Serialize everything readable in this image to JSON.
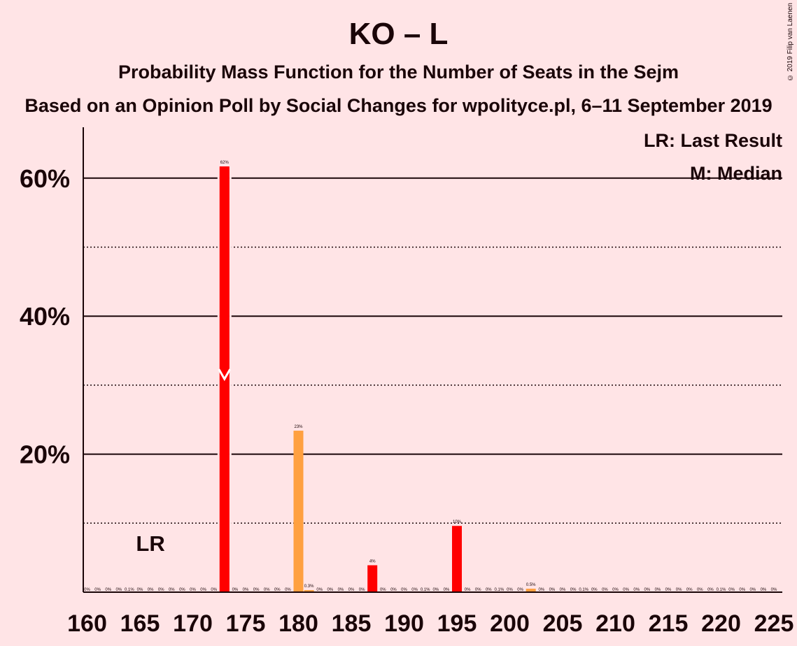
{
  "title": "KO – L",
  "subtitle": "Probability Mass Function for the Number of Seats in the Sejm",
  "source": "Based on an Opinion Poll by Social Changes for wpolityce.pl, 6–11 September 2019",
  "copyright": "© 2019 Filip van Laenen",
  "legend": {
    "lr": "LR: Last Result",
    "m": "M: Median"
  },
  "lr_marker": "LR",
  "colors": {
    "background": "#FFE4E6",
    "red": "#FF0000",
    "orange": "#FFA040",
    "text": "#1a0508"
  },
  "chart_data": {
    "type": "bar",
    "x": [
      160,
      161,
      162,
      163,
      164,
      165,
      166,
      167,
      168,
      169,
      170,
      171,
      172,
      173,
      174,
      175,
      176,
      177,
      178,
      179,
      180,
      181,
      182,
      183,
      184,
      185,
      186,
      187,
      188,
      189,
      190,
      191,
      192,
      193,
      194,
      195,
      196,
      197,
      198,
      199,
      200,
      201,
      202,
      203,
      204,
      205,
      206,
      207,
      208,
      209,
      210,
      211,
      212,
      213,
      214,
      215,
      216,
      217,
      218,
      219,
      220,
      221,
      222,
      223,
      224,
      225
    ],
    "values": [
      0,
      0,
      0,
      0,
      0.1,
      0,
      0,
      0,
      0,
      0,
      0,
      0,
      0,
      61.7,
      0,
      0,
      0,
      0,
      0,
      0,
      23.4,
      0.3,
      0,
      0,
      0,
      0,
      0,
      3.9,
      0,
      0,
      0,
      0,
      0.1,
      0,
      0,
      9.6,
      0,
      0,
      0,
      0.1,
      0,
      0,
      0.5,
      0,
      0,
      0,
      0,
      0.1,
      0,
      0,
      0,
      0,
      0,
      0,
      0,
      0,
      0,
      0,
      0,
      0,
      0.1,
      0,
      0,
      0,
      0,
      0
    ],
    "labels": [
      "0%",
      "0%",
      "0%",
      "0%",
      "0.1%",
      "0%",
      "0%",
      "0%",
      "0%",
      "0%",
      "0%",
      "0%",
      "0%",
      "62%",
      "0%",
      "0%",
      "0%",
      "0%",
      "0%",
      "0%",
      "23%",
      "0.3%",
      "0%",
      "0%",
      "0%",
      "0%",
      "0%",
      "4%",
      "0%",
      "0%",
      "0%",
      "0%",
      "0.1%",
      "0%",
      "0%",
      "10%",
      "0%",
      "0%",
      "0%",
      "0.1%",
      "0%",
      "0%",
      "0.5%",
      "0%",
      "0%",
      "0%",
      "0%",
      "0.1%",
      "0%",
      "0%",
      "0%",
      "0%",
      "0%",
      "0%",
      "0%",
      "0%",
      "0%",
      "0%",
      "0%",
      "0%",
      "0.1%",
      "0%",
      "0%",
      "0%",
      "0%",
      "0%"
    ],
    "orange_x": [
      180,
      181,
      202
    ],
    "median": 173,
    "last_result": 166,
    "xticks": [
      160,
      165,
      170,
      175,
      180,
      185,
      190,
      195,
      200,
      205,
      210,
      215,
      220,
      225
    ],
    "yticks": [
      {
        "v": 20,
        "label": "20%"
      },
      {
        "v": 40,
        "label": "40%"
      },
      {
        "v": 60,
        "label": "60%"
      }
    ],
    "ygrid_minor": [
      10,
      30,
      50
    ],
    "ylim": [
      0,
      67
    ],
    "xlim": [
      160,
      225
    ]
  }
}
